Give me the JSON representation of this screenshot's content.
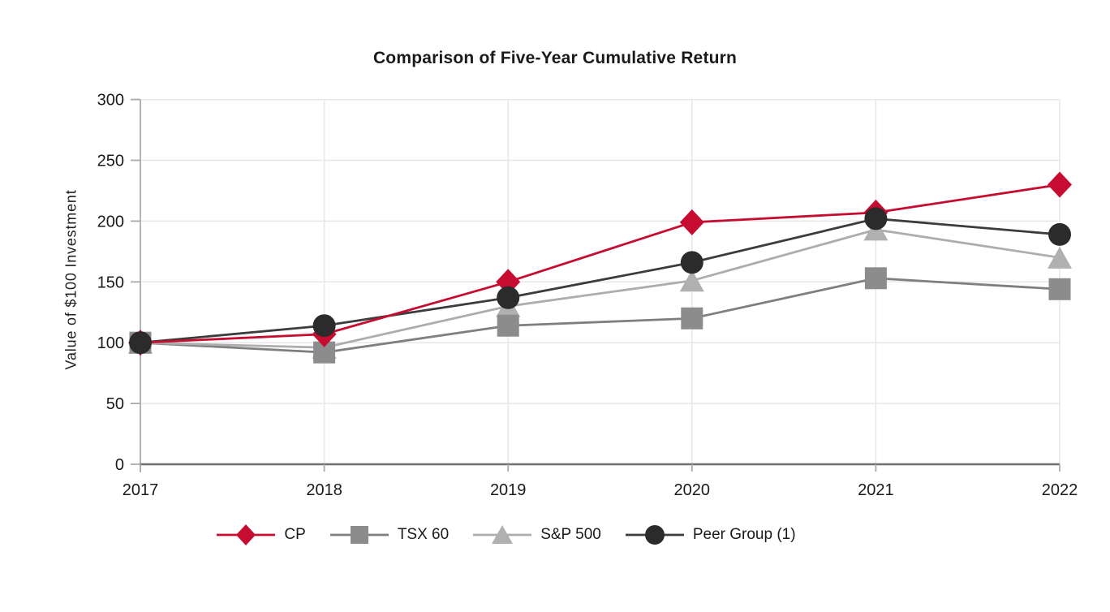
{
  "chart": {
    "title": "Comparison of Five-Year Cumulative Return",
    "y_axis_label": "Value of $100 Investment"
  },
  "chart_data": {
    "type": "line",
    "title": "Comparison of Five-Year Cumulative Return",
    "xlabel": "",
    "ylabel": "Value of $100 Investment",
    "x_tick_labels": [
      "2017",
      "2018",
      "2019",
      "2020",
      "2021",
      "2022"
    ],
    "y_ticks": [
      0,
      50,
      100,
      150,
      200,
      250,
      300
    ],
    "ylim": [
      0,
      300
    ],
    "grid": true,
    "legend_position": "bottom",
    "series": [
      {
        "name": "CP",
        "marker": "diamond",
        "marker_color": "#c60c30",
        "line_color": "#c60c30",
        "values": [
          100,
          107,
          150,
          199,
          207,
          230
        ]
      },
      {
        "name": "TSX 60",
        "marker": "square",
        "marker_color": "#8c8c8c",
        "line_color": "#7f7f7f",
        "values": [
          100,
          92,
          114,
          120,
          153,
          144
        ]
      },
      {
        "name": "S&P 500",
        "marker": "triangle",
        "marker_color": "#b0b0b0",
        "line_color": "#adadad",
        "values": [
          100,
          96,
          130,
          151,
          193,
          170
        ]
      },
      {
        "name": "Peer Group (1)",
        "marker": "circle",
        "marker_color": "#2b2b2b",
        "line_color": "#3c3c3c",
        "values": [
          100,
          114,
          137,
          166,
          202,
          189
        ]
      }
    ]
  }
}
